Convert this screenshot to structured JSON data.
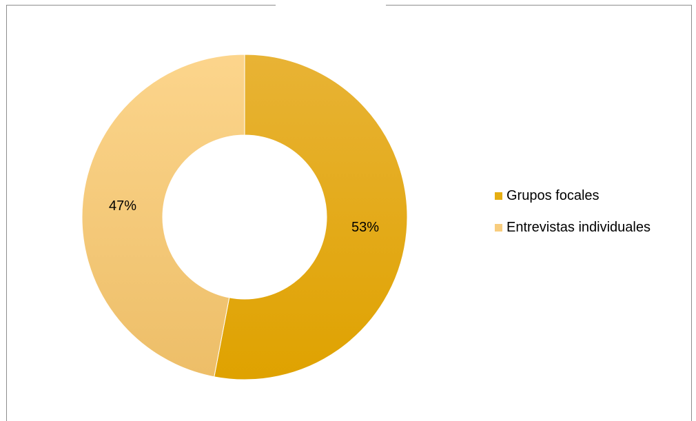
{
  "chart_data": {
    "type": "pie",
    "donut": true,
    "title": "",
    "slices": [
      {
        "label": "Grupos focales",
        "value": 53,
        "value_label": "53%",
        "color": "#E6AE12"
      },
      {
        "label": "Entrevistas individuales",
        "value": 47,
        "value_label": "47%",
        "color": "#F8CD7E"
      }
    ],
    "legend_position": "right"
  }
}
